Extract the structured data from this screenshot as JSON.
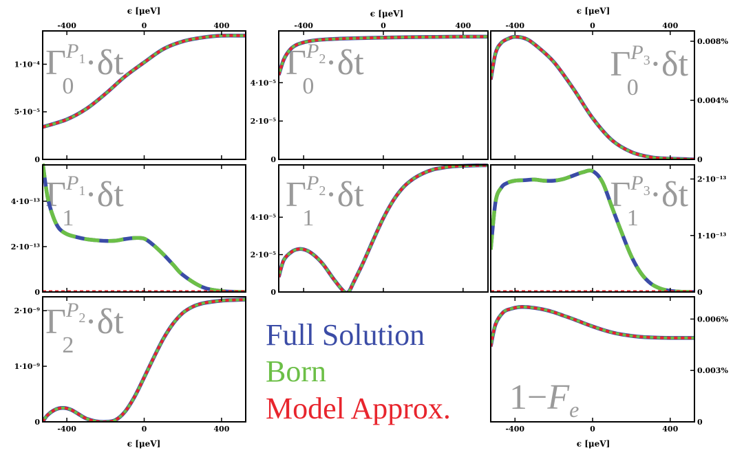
{
  "colors": {
    "full_solution": "#3B4CA6",
    "born": "#6CBF47",
    "model_approx": "#E8252D",
    "panel_label": "#9a9a9a"
  },
  "legend": {
    "full_solution": "Full Solution",
    "born": "Born",
    "model_approx": "Model Approx."
  },
  "axis_titles": {
    "top": "ϵ [μeV]",
    "bottom": "ϵ [μeV]"
  },
  "chart_data": [
    {
      "id": "g0_p1",
      "type": "line",
      "label_parts": [
        "Γ",
        "0",
        "P",
        "1",
        "·δt"
      ],
      "xlim": [
        -525,
        525
      ],
      "ylim": [
        0,
        0.000135
      ],
      "xticks": [
        -400,
        0,
        400
      ],
      "xtick_labels": [
        "-400",
        "0",
        "400"
      ],
      "yticks": [
        0,
        5e-05,
        0.0001
      ],
      "ytick_labels": [
        "0",
        "5·10⁻⁵",
        "1·10⁻⁴"
      ],
      "y_axis_side": "left",
      "style": "model-over-full",
      "x": [
        -525,
        -400,
        -300,
        -200,
        -100,
        0,
        100,
        200,
        300,
        400,
        525
      ],
      "series": [
        {
          "name": "Full Solution",
          "values": [
            3.4e-05,
            4.2e-05,
            5.3e-05,
            6.9e-05,
            8.7e-05,
            0.000102,
            0.000116,
            0.000124,
            0.000128,
            0.00013,
            0.00013
          ]
        },
        {
          "name": "Model Approx.",
          "values": [
            3.4e-05,
            4.2e-05,
            5.3e-05,
            6.9e-05,
            8.7e-05,
            0.000102,
            0.000116,
            0.000124,
            0.000128,
            0.00013,
            0.00013
          ]
        }
      ]
    },
    {
      "id": "g0_p2",
      "type": "line",
      "label_parts": [
        "Γ",
        "0",
        "P",
        "2",
        "·δt"
      ],
      "xlim": [
        -525,
        525
      ],
      "ylim": [
        0,
        6.7e-05
      ],
      "xticks": [
        -400,
        0,
        400
      ],
      "xtick_labels": [
        "-400",
        "0",
        "400"
      ],
      "yticks": [
        0,
        2e-05,
        4e-05
      ],
      "ytick_labels": [
        "0",
        "2·10⁻⁵",
        "4·10⁻⁵"
      ],
      "y_axis_side": "left",
      "style": "model-over-full",
      "x": [
        -525,
        -500,
        -470,
        -440,
        -400,
        -350,
        -300,
        -200,
        -100,
        0,
        100,
        200,
        300,
        400,
        525
      ],
      "series": [
        {
          "name": "Full Solution",
          "values": [
            4.4e-05,
            5.2e-05,
            5.7e-05,
            5.95e-05,
            6.1e-05,
            6.2e-05,
            6.25e-05,
            6.3e-05,
            6.33e-05,
            6.35e-05,
            6.37e-05,
            6.38e-05,
            6.39e-05,
            6.4e-05,
            6.4e-05
          ]
        },
        {
          "name": "Model Approx.",
          "values": [
            4.4e-05,
            5.2e-05,
            5.7e-05,
            5.95e-05,
            6.1e-05,
            6.2e-05,
            6.25e-05,
            6.3e-05,
            6.33e-05,
            6.35e-05,
            6.37e-05,
            6.38e-05,
            6.39e-05,
            6.4e-05,
            6.4e-05
          ]
        }
      ]
    },
    {
      "id": "g0_p3",
      "type": "line",
      "label_parts": [
        "Γ",
        "0",
        "P",
        "3",
        "·δt"
      ],
      "xlim": [
        -525,
        525
      ],
      "ylim": [
        0,
        0.0087
      ],
      "xticks": [
        -400,
        0,
        400
      ],
      "xtick_labels": [
        "-400",
        "0",
        "400"
      ],
      "yticks": [
        0,
        0.004,
        0.008
      ],
      "ytick_labels": [
        "0",
        "0.004%",
        "0.008%"
      ],
      "y_axis_side": "right",
      "style": "model-over-full",
      "x": [
        -525,
        -500,
        -470,
        -430,
        -400,
        -350,
        -300,
        -200,
        -100,
        0,
        100,
        200,
        300,
        400,
        525
      ],
      "series": [
        {
          "name": "Full Solution",
          "values": [
            0.0054,
            0.0072,
            0.0079,
            0.0082,
            0.0083,
            0.0082,
            0.0078,
            0.0066,
            0.0048,
            0.0028,
            0.0013,
            0.0005,
            0.00015,
            5e-05,
            0.0
          ]
        },
        {
          "name": "Model Approx.",
          "values": [
            0.0054,
            0.0072,
            0.0079,
            0.0082,
            0.0083,
            0.0082,
            0.0078,
            0.0066,
            0.0048,
            0.0028,
            0.0013,
            0.0005,
            0.00015,
            5e-05,
            0.0
          ]
        }
      ]
    },
    {
      "id": "g1_p1",
      "type": "line",
      "label_parts": [
        "Γ",
        "1",
        "P",
        "1",
        "·δt"
      ],
      "xlim": [
        -525,
        525
      ],
      "ylim": [
        0,
        5.6e-13
      ],
      "xticks": [
        -400,
        0,
        400
      ],
      "xtick_labels": [],
      "yticks": [
        0,
        2e-13,
        4e-13
      ],
      "ytick_labels": [
        "0",
        "2·10⁻¹³",
        "4·10⁻¹³"
      ],
      "y_axis_side": "left",
      "style": "born-over-full",
      "x": [
        -525,
        -500,
        -470,
        -440,
        -400,
        -350,
        -300,
        -250,
        -200,
        -150,
        -100,
        -50,
        0,
        50,
        100,
        150,
        200,
        300,
        400,
        525
      ],
      "series": [
        {
          "name": "Full Solution",
          "values": [
            5.7e-13,
            4.2e-13,
            3.3e-13,
            2.8e-13,
            2.55e-13,
            2.42e-13,
            2.33e-13,
            2.28e-13,
            2.25e-13,
            2.26e-13,
            2.33e-13,
            2.38e-13,
            2.35e-13,
            2.05e-13,
            1.65e-13,
            1.2e-13,
            7.5e-14,
            2.2e-14,
            4e-15,
            0.0
          ]
        },
        {
          "name": "Born",
          "values": [
            5.7e-13,
            4.2e-13,
            3.3e-13,
            2.8e-13,
            2.55e-13,
            2.42e-13,
            2.33e-13,
            2.28e-13,
            2.25e-13,
            2.26e-13,
            2.33e-13,
            2.38e-13,
            2.35e-13,
            2.05e-13,
            1.65e-13,
            1.2e-13,
            7.5e-14,
            2.2e-14,
            4e-15,
            0.0
          ]
        },
        {
          "name": "Model Approx.",
          "values": [
            0.0,
            0.0,
            0.0,
            0.0,
            0.0,
            0.0,
            0.0,
            0.0,
            0.0,
            0.0,
            0.0,
            0.0,
            0.0,
            0.0,
            0.0,
            0.0,
            0.0,
            0.0,
            0.0,
            0.0
          ]
        }
      ]
    },
    {
      "id": "g1_p2",
      "type": "line",
      "label_parts": [
        "Γ",
        "1",
        "P",
        "2",
        "·δt"
      ],
      "xlim": [
        -525,
        525
      ],
      "ylim": [
        0,
        6.8e-05
      ],
      "xticks": [
        -400,
        0,
        400
      ],
      "xtick_labels": [],
      "yticks": [
        0,
        2e-05,
        4e-05
      ],
      "ytick_labels": [
        "0",
        "2·10⁻⁵",
        "4·10⁻⁵"
      ],
      "y_axis_side": "left",
      "style": "model-over-full",
      "x": [
        -525,
        -500,
        -460,
        -420,
        -380,
        -340,
        -300,
        -250,
        -200,
        -175,
        -150,
        -100,
        -50,
        0,
        50,
        100,
        150,
        200,
        250,
        300,
        350,
        400,
        450,
        525
      ],
      "series": [
        {
          "name": "Full Solution",
          "values": [
            8e-06,
            1.7e-05,
            2.15e-05,
            2.3e-05,
            2.2e-05,
            1.9e-05,
            1.45e-05,
            7e-06,
            5e-07,
            0.0,
            5e-06,
            1.6e-05,
            2.8e-05,
            3.95e-05,
            4.9e-05,
            5.6e-05,
            6.05e-05,
            6.35e-05,
            6.55e-05,
            6.65e-05,
            6.72e-05,
            6.75e-05,
            6.77e-05,
            6.78e-05
          ]
        },
        {
          "name": "Model Approx.",
          "values": [
            8e-06,
            1.7e-05,
            2.15e-05,
            2.3e-05,
            2.2e-05,
            1.9e-05,
            1.45e-05,
            7e-06,
            5e-07,
            0.0,
            5e-06,
            1.6e-05,
            2.8e-05,
            3.95e-05,
            4.9e-05,
            5.6e-05,
            6.05e-05,
            6.35e-05,
            6.55e-05,
            6.65e-05,
            6.72e-05,
            6.75e-05,
            6.77e-05,
            6.78e-05
          ]
        }
      ]
    },
    {
      "id": "g1_p3",
      "type": "line",
      "label_parts": [
        "Γ",
        "1",
        "P",
        "3",
        "·δt"
      ],
      "xlim": [
        -525,
        525
      ],
      "ylim": [
        0,
        2.25e-13
      ],
      "xticks": [
        -400,
        0,
        400
      ],
      "xtick_labels": [],
      "yticks": [
        0,
        1e-13,
        2e-13
      ],
      "ytick_labels": [
        "0",
        "1·10⁻¹³",
        "2·10⁻¹³"
      ],
      "y_axis_side": "right",
      "style": "born-over-full",
      "x": [
        -525,
        -500,
        -470,
        -440,
        -400,
        -350,
        -300,
        -250,
        -200,
        -150,
        -100,
        -50,
        0,
        50,
        100,
        150,
        200,
        250,
        300,
        350,
        400,
        450,
        525
      ],
      "series": [
        {
          "name": "Full Solution",
          "values": [
            7.5e-14,
            1.6e-13,
            1.85e-13,
            1.93e-13,
            1.97e-13,
            1.98e-13,
            1.99e-13,
            1.97e-13,
            1.97e-13,
            2e-13,
            2.06e-13,
            2.12e-13,
            2.14e-13,
            1.95e-13,
            1.5e-13,
            1.05e-13,
            6.3e-14,
            3.3e-14,
            1.5e-14,
            6e-15,
            2e-15,
            5e-16,
            0.0
          ]
        },
        {
          "name": "Born",
          "values": [
            7.5e-14,
            1.6e-13,
            1.85e-13,
            1.93e-13,
            1.97e-13,
            1.98e-13,
            1.99e-13,
            1.97e-13,
            1.97e-13,
            2e-13,
            2.06e-13,
            2.12e-13,
            2.14e-13,
            1.95e-13,
            1.5e-13,
            1.05e-13,
            6.3e-14,
            3.3e-14,
            1.5e-14,
            6e-15,
            2e-15,
            5e-16,
            0.0
          ]
        },
        {
          "name": "Model Approx.",
          "values": [
            0.0,
            0.0,
            0.0,
            0.0,
            0.0,
            0.0,
            0.0,
            0.0,
            0.0,
            0.0,
            0.0,
            0.0,
            0.0,
            0.0,
            0.0,
            0.0,
            0.0,
            0.0,
            0.0,
            0.0,
            0.0,
            0.0,
            0.0
          ]
        }
      ]
    },
    {
      "id": "g2_p2",
      "type": "line",
      "label_parts": [
        "Γ",
        "2",
        "P",
        "2",
        "·δt"
      ],
      "xlim": [
        -525,
        525
      ],
      "ylim": [
        0,
        2.25e-09
      ],
      "xticks": [
        -400,
        0,
        400
      ],
      "xtick_labels": [
        "-400",
        "0",
        "400"
      ],
      "yticks": [
        0,
        1e-09,
        2e-09
      ],
      "ytick_labels": [
        "0",
        "1·10⁻⁹",
        "2·10⁻⁹"
      ],
      "y_axis_side": "left",
      "style": "model-over-full",
      "x": [
        -525,
        -500,
        -460,
        -420,
        -380,
        -340,
        -300,
        -250,
        -200,
        -150,
        -100,
        -50,
        0,
        50,
        100,
        150,
        200,
        250,
        300,
        350,
        400,
        450,
        525
      ],
      "series": [
        {
          "name": "Full Solution",
          "values": [
            0.0,
            1.2e-10,
            2.2e-10,
            2.5e-10,
            2.2e-10,
            1.4e-10,
            6e-11,
            1e-11,
            0.0,
            3e-11,
            1.8e-10,
            4.5e-10,
            8e-10,
            1.16e-09,
            1.5e-09,
            1.77e-09,
            1.96e-09,
            2.07e-09,
            2.13e-09,
            2.16e-09,
            2.18e-09,
            2.19e-09,
            2.2e-09
          ]
        },
        {
          "name": "Model Approx.",
          "values": [
            0.0,
            1.2e-10,
            2.2e-10,
            2.5e-10,
            2.2e-10,
            1.4e-10,
            6e-11,
            1e-11,
            0.0,
            3e-11,
            1.8e-10,
            4.5e-10,
            8e-10,
            1.16e-09,
            1.5e-09,
            1.77e-09,
            1.96e-09,
            2.07e-09,
            2.13e-09,
            2.16e-09,
            2.18e-09,
            2.19e-09,
            2.2e-09
          ]
        }
      ]
    },
    {
      "id": "one_minus_fe",
      "type": "line",
      "label_parts": [
        "1−",
        "F",
        "e"
      ],
      "xlim": [
        -525,
        525
      ],
      "ylim": [
        0,
        0.0073
      ],
      "xticks": [
        -400,
        0,
        400
      ],
      "xtick_labels": [
        "-400",
        "0",
        "400"
      ],
      "yticks": [
        0,
        0.003,
        0.006
      ],
      "ytick_labels": [
        "0",
        "0.003%",
        "0.006%"
      ],
      "y_axis_side": "right",
      "style": "model-over-full",
      "x": [
        -525,
        -500,
        -460,
        -420,
        -380,
        -340,
        -300,
        -250,
        -200,
        -150,
        -100,
        -50,
        0,
        50,
        100,
        150,
        200,
        250,
        300,
        350,
        400,
        450,
        525
      ],
      "series": [
        {
          "name": "Full Solution",
          "values": [
            0.0044,
            0.0057,
            0.0064,
            0.0066,
            0.0067,
            0.0067,
            0.00665,
            0.00655,
            0.0064,
            0.0062,
            0.006,
            0.00578,
            0.00557,
            0.00538,
            0.00522,
            0.0051,
            0.00502,
            0.00496,
            0.00493,
            0.00491,
            0.0049,
            0.0049,
            0.0049
          ]
        },
        {
          "name": "Model Approx.",
          "values": [
            0.0044,
            0.0057,
            0.0064,
            0.0066,
            0.0067,
            0.0067,
            0.00665,
            0.00655,
            0.0064,
            0.0062,
            0.006,
            0.00578,
            0.00557,
            0.00538,
            0.00522,
            0.0051,
            0.00502,
            0.00496,
            0.00493,
            0.00491,
            0.0049,
            0.0049,
            0.0049
          ]
        }
      ]
    }
  ]
}
